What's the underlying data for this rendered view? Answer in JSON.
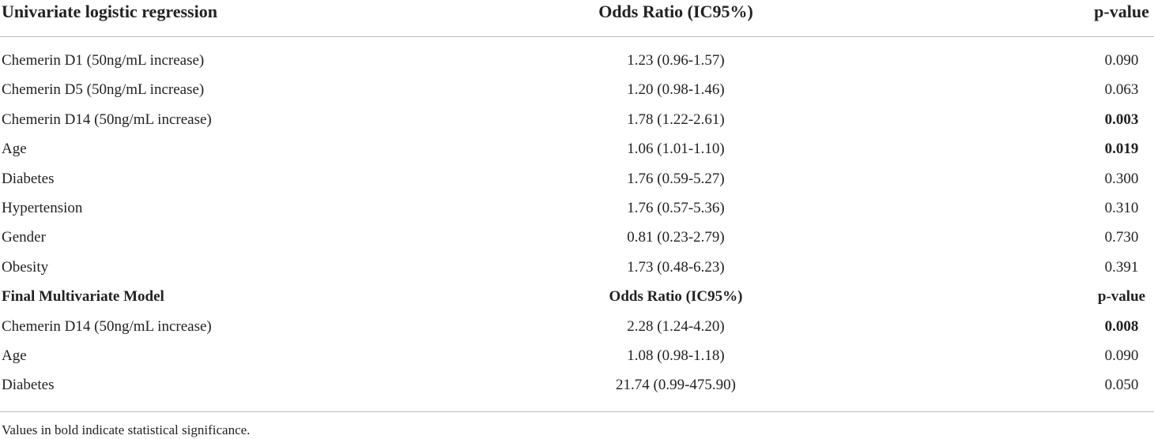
{
  "table": {
    "header": [
      "Univariate logistic regression",
      "Odds Ratio (IC95%)",
      "p-value"
    ],
    "rows": [
      {
        "label": "Chemerin D1 (50ng/mL increase)",
        "odds_ratio": "1.23 (0.96-1.57)",
        "p_value": "0.090"
      },
      {
        "label": "Chemerin D5 (50ng/mL increase)",
        "odds_ratio": "1.20 (0.98-1.46)",
        "p_value": "0.063"
      },
      {
        "label": "Chemerin D14 (50ng/mL increase)",
        "odds_ratio": "1.78 (1.22-2.61)",
        "p_value": "0.003",
        "p_bold": true
      },
      {
        "label": "Age",
        "odds_ratio": "1.06 (1.01-1.10)",
        "p_value": "0.019",
        "p_bold": true
      },
      {
        "label": "Diabetes",
        "odds_ratio": "1.76 (0.59-5.27)",
        "p_value": "0.300"
      },
      {
        "label": "Hypertension",
        "odds_ratio": "1.76 (0.57-5.36)",
        "p_value": "0.310"
      },
      {
        "label": "Gender",
        "odds_ratio": "0.81 (0.23-2.79)",
        "p_value": "0.730"
      },
      {
        "label": "Obesity",
        "odds_ratio": "1.73 (0.48-6.23)",
        "p_value": "0.391"
      }
    ],
    "section_header": [
      "Final Multivariate Model",
      "Odds Ratio (IC95%)",
      "p-value"
    ],
    "section_rows": [
      {
        "label": "Chemerin D14 (50ng/mL increase)",
        "odds_ratio": "2.28 (1.24-4.20)",
        "p_value": "0.008",
        "p_bold": true
      },
      {
        "label": "Age",
        "odds_ratio": "1.08 (0.98-1.18)",
        "p_value": "0.090"
      },
      {
        "label": "Diabetes",
        "odds_ratio": "21.74 (0.99-475.90)",
        "p_value": "0.050"
      }
    ],
    "footnote": "Values in bold indicate statistical significance."
  }
}
